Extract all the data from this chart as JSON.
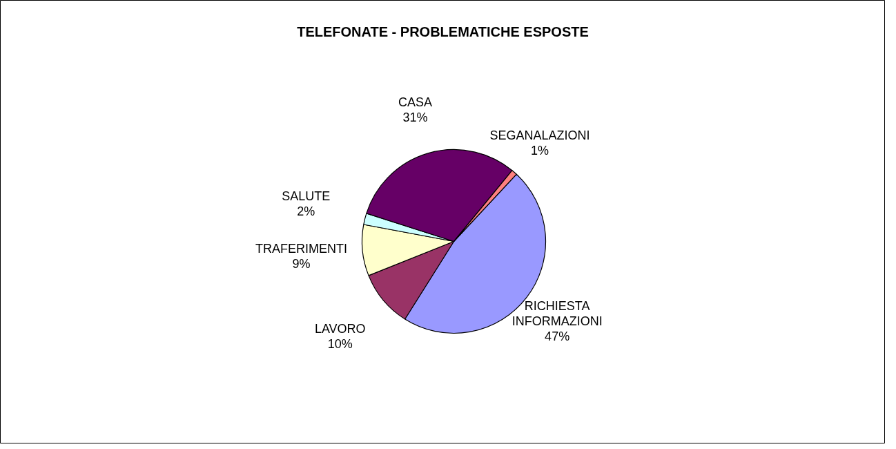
{
  "chart_data": {
    "type": "pie",
    "title": "TELEFONATE - PROBLEMATICHE ESPOSTE",
    "categories": [
      "RICHIESTA INFORMAZIONI",
      "LAVORO",
      "TRAFERIMENTI",
      "SALUTE",
      "CASA",
      "SEGANALAZIONI"
    ],
    "values": [
      47,
      10,
      9,
      2,
      31,
      1
    ],
    "value_labels": [
      "47%",
      "10%",
      "9%",
      "2%",
      "31%",
      "1%"
    ],
    "colors": [
      "#9999ff",
      "#993366",
      "#ffffcc",
      "#ccffff",
      "#660066",
      "#ff8080"
    ]
  }
}
